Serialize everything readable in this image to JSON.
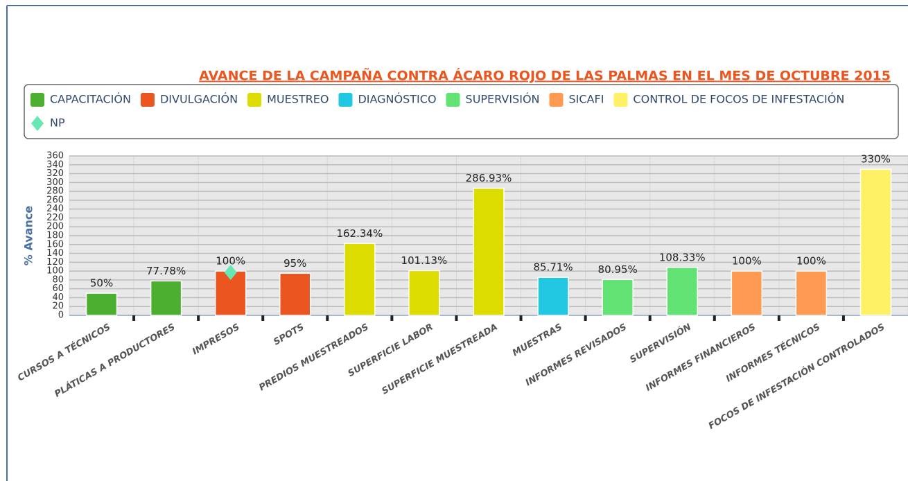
{
  "chart_data": {
    "type": "bar",
    "title": "AVANCE DE LA CAMPAÑA CONTRA ÁCARO ROJO DE LAS PALMAS EN EL MES DE OCTUBRE 2015",
    "y_label": "% Avance",
    "categories": [
      "CURSOS A TÉCNICOS",
      "PLÁTICAS A PRODUCTORES",
      "IMPRESOS",
      "SPOTS",
      "PREDIOS MUESTREADOS",
      "SUPERFICIE LABOR",
      "SUPERFICIE MUESTREADA",
      "MUESTRAS",
      "INFORMES REVISADOS",
      "SUPERVISIÓN",
      "INFORMES FINANCIEROS",
      "INFORMES TÉCNICOS",
      "FOCOS DE INFESTACIÓN CONTROLADOS"
    ],
    "series": [
      {
        "name": "CAPACITACIÓN",
        "color": "#4caf2f",
        "values": [
          50,
          77.78,
          null,
          null,
          null,
          null,
          null,
          null,
          null,
          null,
          null,
          null,
          null
        ],
        "value_labels": [
          "50%",
          "77.78%",
          null,
          null,
          null,
          null,
          null,
          null,
          null,
          null,
          null,
          null,
          null
        ]
      },
      {
        "name": "DIVULGACIÓN",
        "color": "#ea5520",
        "values": [
          null,
          null,
          100,
          95,
          null,
          null,
          null,
          null,
          null,
          null,
          null,
          null,
          null
        ],
        "value_labels": [
          null,
          null,
          "100%",
          "95%",
          null,
          null,
          null,
          null,
          null,
          null,
          null,
          null,
          null
        ]
      },
      {
        "name": "MUESTREO",
        "color": "#dcdc00",
        "values": [
          null,
          null,
          null,
          null,
          162.34,
          101.13,
          286.93,
          null,
          null,
          null,
          null,
          null,
          null
        ],
        "value_labels": [
          null,
          null,
          null,
          null,
          "162.34%",
          "101.13%",
          "286.93%",
          null,
          null,
          null,
          null,
          null,
          null
        ]
      },
      {
        "name": "DIAGNÓSTICO",
        "color": "#22c8e2",
        "values": [
          null,
          null,
          null,
          null,
          null,
          null,
          null,
          85.71,
          null,
          null,
          null,
          null,
          null
        ],
        "value_labels": [
          null,
          null,
          null,
          null,
          null,
          null,
          null,
          "85.71%",
          null,
          null,
          null,
          null,
          null
        ]
      },
      {
        "name": "SUPERVISIÓN",
        "color": "#62e272",
        "values": [
          null,
          null,
          null,
          null,
          null,
          null,
          null,
          null,
          80.95,
          108.33,
          null,
          null,
          null
        ],
        "value_labels": [
          null,
          null,
          null,
          null,
          null,
          null,
          null,
          null,
          "80.95%",
          "108.33%",
          null,
          null,
          null
        ]
      },
      {
        "name": "SICAFI",
        "color": "#ff9a52",
        "values": [
          null,
          null,
          null,
          null,
          null,
          null,
          null,
          null,
          null,
          null,
          100,
          100,
          null
        ],
        "value_labels": [
          null,
          null,
          null,
          null,
          null,
          null,
          null,
          null,
          null,
          null,
          "100%",
          "100%",
          null
        ]
      },
      {
        "name": "CONTROL DE FOCOS DE INFESTACIÓN",
        "color": "#fff165",
        "values": [
          null,
          null,
          null,
          null,
          null,
          null,
          null,
          null,
          null,
          null,
          null,
          null,
          330
        ],
        "value_labels": [
          null,
          null,
          null,
          null,
          null,
          null,
          null,
          null,
          null,
          null,
          null,
          null,
          "330%"
        ]
      },
      {
        "name": "NP",
        "color": "#66e8b4",
        "marker": "diamond",
        "values": [
          null,
          null,
          97,
          null,
          null,
          null,
          null,
          null,
          null,
          null,
          null,
          null,
          null
        ]
      }
    ],
    "ylim": [
      0,
      360
    ],
    "yticks": [
      0,
      20,
      40,
      60,
      80,
      100,
      120,
      140,
      160,
      180,
      200,
      220,
      240,
      260,
      280,
      300,
      320,
      340,
      360
    ],
    "grid": true
  }
}
